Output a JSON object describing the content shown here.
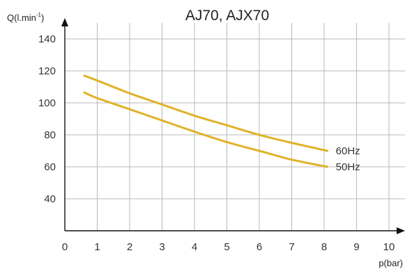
{
  "chart_data": {
    "type": "line",
    "title": "AJ70, AJX70",
    "ylabel": {
      "main": "Q(l.min",
      "sup": "-1",
      "close": ")"
    },
    "xlabel": "p(bar)",
    "xlim": [
      0,
      10.5
    ],
    "ylim": [
      20,
      150
    ],
    "xticks": [
      0,
      1,
      2,
      3,
      4,
      5,
      6,
      7,
      8,
      9,
      10
    ],
    "yticks": [
      40,
      60,
      80,
      100,
      120,
      140
    ],
    "grid": true,
    "line_color": "#e0b227",
    "series": [
      {
        "name": "60Hz",
        "x": [
          0.6,
          1,
          2,
          3,
          4,
          5,
          6,
          7,
          8.1
        ],
        "y": [
          117,
          114,
          106,
          99,
          92,
          86,
          80,
          75,
          70
        ]
      },
      {
        "name": "50Hz",
        "x": [
          0.6,
          1,
          2,
          3,
          4,
          5,
          6,
          7,
          8.1
        ],
        "y": [
          106.5,
          103,
          96,
          89,
          82,
          75.5,
          70,
          64.5,
          60
        ]
      }
    ]
  }
}
